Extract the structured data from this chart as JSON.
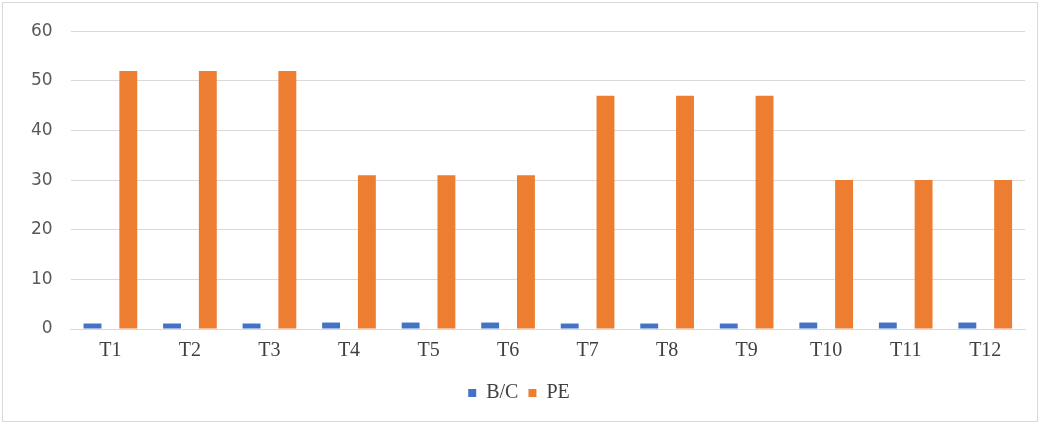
{
  "chart_data": {
    "type": "bar",
    "categories": [
      "T1",
      "T2",
      "T3",
      "T4",
      "T5",
      "T6",
      "T7",
      "T8",
      "T9",
      "T10",
      "T11",
      "T12"
    ],
    "series": [
      {
        "name": "B/C",
        "color": "#4472c4",
        "values": [
          1.1,
          1.1,
          1.1,
          1.3,
          1.3,
          1.3,
          1.1,
          1.1,
          1.1,
          1.3,
          1.3,
          1.3
        ]
      },
      {
        "name": "PE",
        "color": "#ed7d31",
        "values": [
          52,
          52,
          52,
          31,
          31,
          31,
          47,
          47,
          47,
          30,
          30,
          30
        ]
      }
    ],
    "ylim": [
      0,
      60
    ],
    "yticks": [
      0,
      10,
      20,
      30,
      40,
      50,
      60
    ],
    "grid": "y",
    "legend": "bottom"
  }
}
